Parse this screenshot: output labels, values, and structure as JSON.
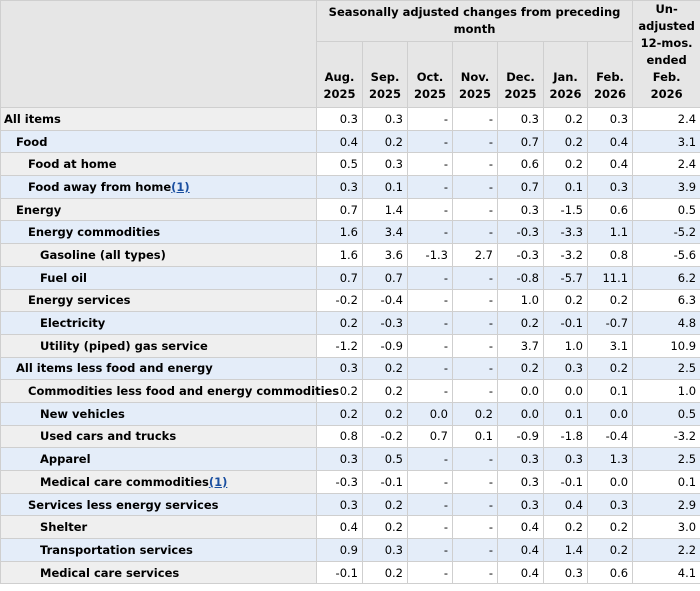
{
  "header": {
    "group": "Seasonally adjusted changes from preceding month",
    "unadjusted": "Un-adjusted 12-mos. ended Feb. 2026",
    "columns": [
      "Aug. 2025",
      "Sep. 2025",
      "Oct. 2025",
      "Nov. 2025",
      "Dec. 2025",
      "Jan. 2026",
      "Feb. 2026"
    ]
  },
  "table": {
    "rows": [
      {
        "label": "All items",
        "values": [
          "0.3",
          "0.3",
          "-",
          "-",
          "0.3",
          "0.2",
          "0.3",
          "2.4"
        ]
      },
      {
        "label": "Food",
        "values": [
          "0.4",
          "0.2",
          "-",
          "-",
          "0.7",
          "0.2",
          "0.4",
          "3.1"
        ]
      },
      {
        "label": "Food at home",
        "values": [
          "0.5",
          "0.3",
          "-",
          "-",
          "0.6",
          "0.2",
          "0.4",
          "2.4"
        ]
      },
      {
        "label": "Food away from home",
        "footnote": "(1)",
        "values": [
          "0.3",
          "0.1",
          "-",
          "-",
          "0.7",
          "0.1",
          "0.3",
          "3.9"
        ]
      },
      {
        "label": "Energy",
        "values": [
          "0.7",
          "1.4",
          "-",
          "-",
          "0.3",
          "-1.5",
          "0.6",
          "0.5"
        ]
      },
      {
        "label": "Energy commodities",
        "values": [
          "1.6",
          "3.4",
          "-",
          "-",
          "-0.3",
          "-3.3",
          "1.1",
          "-5.2"
        ]
      },
      {
        "label": "Gasoline (all types)",
        "values": [
          "1.6",
          "3.6",
          "-1.3",
          "2.7",
          "-0.3",
          "-3.2",
          "0.8",
          "-5.6"
        ]
      },
      {
        "label": "Fuel oil",
        "values": [
          "0.7",
          "0.7",
          "-",
          "-",
          "-0.8",
          "-5.7",
          "11.1",
          "6.2"
        ]
      },
      {
        "label": "Energy services",
        "values": [
          "-0.2",
          "-0.4",
          "-",
          "-",
          "1.0",
          "0.2",
          "0.2",
          "6.3"
        ]
      },
      {
        "label": "Electricity",
        "values": [
          "0.2",
          "-0.3",
          "-",
          "-",
          "0.2",
          "-0.1",
          "-0.7",
          "4.8"
        ]
      },
      {
        "label": "Utility (piped) gas service",
        "values": [
          "-1.2",
          "-0.9",
          "-",
          "-",
          "3.7",
          "1.0",
          "3.1",
          "10.9"
        ]
      },
      {
        "label": "All items less food and energy",
        "values": [
          "0.3",
          "0.2",
          "-",
          "-",
          "0.2",
          "0.3",
          "0.2",
          "2.5"
        ]
      },
      {
        "label": "Commodities less food and energy commodities",
        "values": [
          "0.2",
          "0.2",
          "-",
          "-",
          "0.0",
          "0.0",
          "0.1",
          "1.0"
        ]
      },
      {
        "label": "New vehicles",
        "values": [
          "0.2",
          "0.2",
          "0.0",
          "0.2",
          "0.0",
          "0.1",
          "0.0",
          "0.5"
        ]
      },
      {
        "label": "Used cars and trucks",
        "values": [
          "0.8",
          "-0.2",
          "0.7",
          "0.1",
          "-0.9",
          "-1.8",
          "-0.4",
          "-3.2"
        ]
      },
      {
        "label": "Apparel",
        "values": [
          "0.3",
          "0.5",
          "-",
          "-",
          "0.3",
          "0.3",
          "1.3",
          "2.5"
        ]
      },
      {
        "label": "Medical care commodities",
        "footnote": "(1)",
        "values": [
          "-0.3",
          "-0.1",
          "-",
          "-",
          "0.3",
          "-0.1",
          "0.0",
          "0.1"
        ]
      },
      {
        "label": "Services less energy services",
        "values": [
          "0.3",
          "0.2",
          "-",
          "-",
          "0.3",
          "0.4",
          "0.3",
          "2.9"
        ]
      },
      {
        "label": "Shelter",
        "values": [
          "0.4",
          "0.2",
          "-",
          "-",
          "0.4",
          "0.2",
          "0.2",
          "3.0"
        ]
      },
      {
        "label": "Transportation services",
        "values": [
          "0.9",
          "0.3",
          "-",
          "-",
          "0.4",
          "1.4",
          "0.2",
          "2.2"
        ]
      },
      {
        "label": "Medical care services",
        "values": [
          "-0.1",
          "0.2",
          "-",
          "-",
          "0.4",
          "0.3",
          "0.6",
          "4.1"
        ]
      }
    ]
  }
}
